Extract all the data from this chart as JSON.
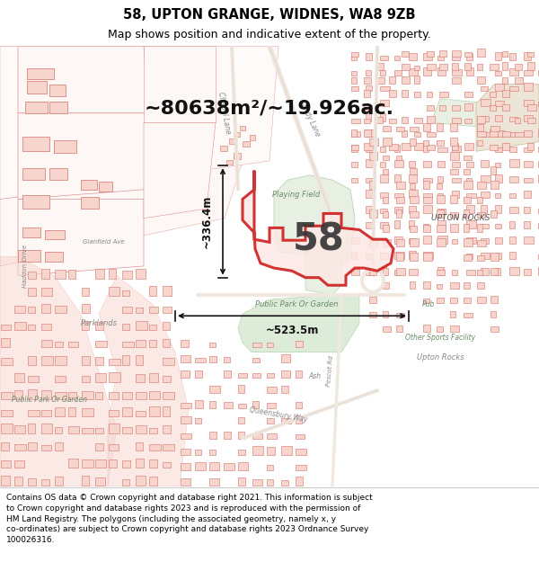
{
  "title": "58, UPTON GRANGE, WIDNES, WA8 9ZB",
  "subtitle": "Map shows position and indicative extent of the property.",
  "area_text": "~80638m²/~19.926ac.",
  "parcel_label": "58",
  "dim_vertical": "~336.4m",
  "dim_horizontal": "~523.5m",
  "footer_line1": "Contains OS data © Crown copyright and database right 2021. This information is subject",
  "footer_line2": "to Crown copyright and database rights 2023 and is reproduced with the permission of",
  "footer_line3": "HM Land Registry. The polygons (including the associated geometry, namely x, y",
  "footer_line4": "co-ordinates) are subject to Crown copyright and database rights 2023 Ordnance Survey",
  "footer_line5": "100026316.",
  "bg_white": "#ffffff",
  "bg_map": "#faf5f2",
  "building_fill": "#f7d4cc",
  "building_edge": "#d4726a",
  "building_edge_light": "#e09090",
  "road_color": "#ffffff",
  "green_fill": "#e8f0e4",
  "green_fill2": "#ddecd8",
  "parcel_fill": "#fce8e4",
  "parcel_edge": "#cc1111",
  "dim_color": "#111111",
  "label_color": "#333333",
  "map_label_color": "#888888",
  "green_label_color": "#6a8a6a",
  "title_fontsize": 10.5,
  "subtitle_fontsize": 9,
  "area_fontsize": 16,
  "parcel_fontsize": 30,
  "dim_fontsize": 8.5,
  "map_label_fontsize": 6.5,
  "footer_fontsize": 6.5
}
